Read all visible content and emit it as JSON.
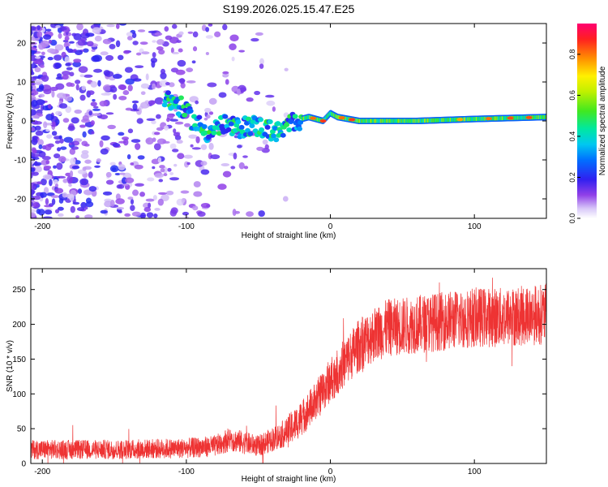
{
  "title": "S199.2026.025.15.47.E25",
  "chart_data": [
    {
      "type": "heatmap",
      "xlabel": "Height of straight line (km)",
      "ylabel": "Frequency (Hz)",
      "xlim": [
        -208,
        150
      ],
      "ylim": [
        -25,
        25
      ],
      "xticks": [
        -200,
        -100,
        0,
        100
      ],
      "xtick_labels": [
        "-200",
        "-100",
        "0",
        "100"
      ],
      "yticks": [
        -20,
        -10,
        0,
        10,
        20
      ],
      "ytick_labels": [
        "-20",
        "-10",
        "0",
        "10",
        "20"
      ],
      "features": [
        {
          "name": "ridge",
          "x": [
            -115,
            -105,
            -95,
            -85,
            -75,
            -65,
            -55,
            -45,
            -35,
            -25,
            -15,
            -5,
            0,
            5,
            20,
            60,
            100,
            150
          ],
          "y": [
            6,
            4,
            0,
            -3,
            -1,
            -2,
            -1,
            -2,
            -3,
            0,
            1,
            0,
            2,
            1,
            0,
            0,
            0.5,
            1
          ]
        },
        {
          "name": "noise",
          "x_range": [
            -208,
            -30
          ],
          "amp_range": [
            0.05,
            0.3
          ]
        }
      ],
      "colorbar": {
        "label": "Normalized spectral amplitude",
        "range": [
          0.0,
          0.95
        ],
        "ticks": [
          0.0,
          0.2,
          0.4,
          0.6,
          0.8
        ],
        "tick_labels": [
          "0.0",
          "0.2",
          "0.4",
          "0.6",
          "0.8"
        ]
      }
    },
    {
      "type": "line",
      "xlabel": "Height of straight line (km)",
      "ylabel": "SNR (10 * v/v)",
      "xlim": [
        -208,
        150
      ],
      "ylim": [
        0,
        280
      ],
      "xticks": [
        -200,
        -100,
        0,
        100
      ],
      "xtick_labels": [
        "-200",
        "-100",
        "0",
        "100"
      ],
      "yticks": [
        0,
        50,
        100,
        150,
        200,
        250
      ],
      "ytick_labels": [
        "0",
        "50",
        "100",
        "150",
        "200",
        "250"
      ],
      "series": [
        {
          "name": "SNR",
          "color": "#ee3333",
          "x": [
            -208,
            -150,
            -100,
            -80,
            -70,
            -60,
            -50,
            -40,
            -30,
            -20,
            -10,
            0,
            10,
            20,
            30,
            40,
            60,
            80,
            100,
            120,
            150
          ],
          "y": [
            20,
            20,
            22,
            25,
            35,
            30,
            25,
            35,
            45,
            65,
            90,
            120,
            145,
            170,
            185,
            195,
            200,
            205,
            210,
            210,
            215
          ]
        }
      ]
    }
  ]
}
